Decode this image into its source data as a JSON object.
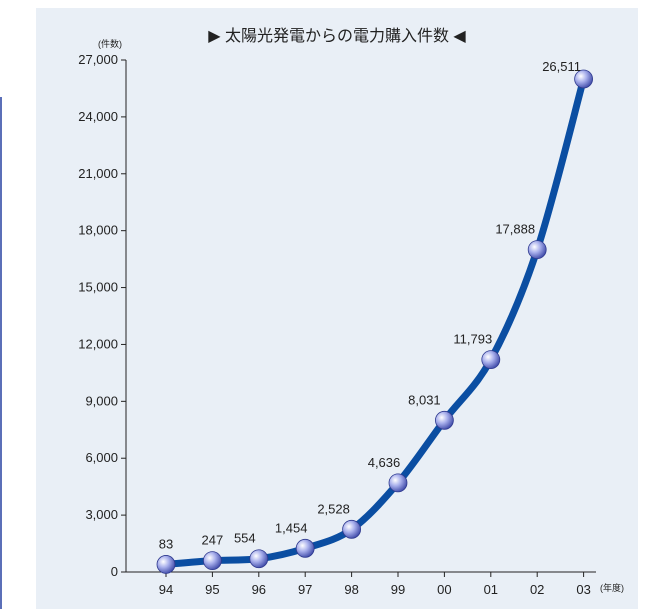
{
  "chart_data": {
    "type": "line",
    "title": "▶ 太陽光発電からの電力購入件数 ◀",
    "y_unit": "(件数)",
    "x_unit": "(年度)",
    "categories": [
      "94",
      "95",
      "96",
      "97",
      "98",
      "99",
      "00",
      "01",
      "02",
      "03"
    ],
    "values": [
      83,
      247,
      554,
      1454,
      2528,
      4636,
      8031,
      11793,
      17888,
      26511
    ],
    "plotted_values": [
      400,
      600,
      700,
      1250,
      2250,
      4700,
      8000,
      11200,
      17000,
      26000
    ],
    "value_labels": [
      "83",
      "247",
      "554",
      "1,454",
      "2,528",
      "4,636",
      "8,031",
      "11,793",
      "17,888",
      "26,511"
    ],
    "ylim": [
      0,
      27000
    ],
    "y_ticks": [
      0,
      3000,
      6000,
      9000,
      12000,
      15000,
      18000,
      21000,
      24000,
      27000
    ],
    "y_tick_labels": [
      "0",
      "3,000",
      "6,000",
      "9,000",
      "12,000",
      "15,000",
      "18,000",
      "21,000",
      "24,000",
      "27,000"
    ],
    "grid": false,
    "legend": "none"
  },
  "colors": {
    "line": "#0b4ea2",
    "marker": "#8c93dd",
    "background": "#e9eff6",
    "accent_rule": "#5b6fb8"
  }
}
